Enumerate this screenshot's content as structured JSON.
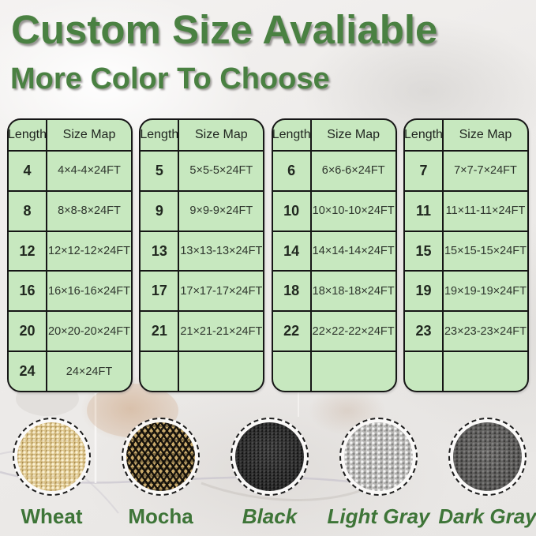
{
  "title": "Custom Size Avaliable",
  "subtitle": "More Color To Choose",
  "table_header": [
    "Length",
    "Size Map"
  ],
  "tables": [
    {
      "rows": [
        [
          "4",
          "4×4-4×24FT"
        ],
        [
          "8",
          "8×8-8×24FT"
        ],
        [
          "12",
          "12×12-12×24FT"
        ],
        [
          "16",
          "16×16-16×24FT"
        ],
        [
          "20",
          "20×20-20×24FT"
        ],
        [
          "24",
          "24×24FT"
        ]
      ]
    },
    {
      "rows": [
        [
          "5",
          "5×5-5×24FT"
        ],
        [
          "9",
          "9×9-9×24FT"
        ],
        [
          "13",
          "13×13-13×24FT"
        ],
        [
          "17",
          "17×17-17×24FT"
        ],
        [
          "21",
          "21×21-21×24FT"
        ],
        [
          "",
          ""
        ]
      ]
    },
    {
      "rows": [
        [
          "6",
          "6×6-6×24FT"
        ],
        [
          "10",
          "10×10-10×24FT"
        ],
        [
          "14",
          "14×14-14×24FT"
        ],
        [
          "18",
          "18×18-18×24FT"
        ],
        [
          "22",
          "22×22-22×24FT"
        ],
        [
          "",
          ""
        ]
      ]
    },
    {
      "rows": [
        [
          "7",
          "7×7-7×24FT"
        ],
        [
          "11",
          "11×11-11×24FT"
        ],
        [
          "15",
          "15×15-15×24FT"
        ],
        [
          "19",
          "19×19-19×24FT"
        ],
        [
          "23",
          "23×23-23×24FT"
        ],
        [
          "",
          ""
        ]
      ]
    }
  ],
  "swatches": [
    {
      "key": "wheat",
      "label": "Wheat",
      "italic": false,
      "base_color": "#d9c186"
    },
    {
      "key": "mocha",
      "label": "Mocha",
      "italic": false,
      "base_color": "#c9aa6b"
    },
    {
      "key": "black",
      "label": "Black",
      "italic": true,
      "base_color": "#2c2c2c"
    },
    {
      "key": "light-gray",
      "label": "Light Gray",
      "italic": true,
      "base_color": "#b7b6b4"
    },
    {
      "key": "dark-gray",
      "label": "Dark Gray",
      "italic": true,
      "base_color": "#646361"
    }
  ],
  "colors": {
    "heading_green": "#4a8142",
    "label_green": "#3e7538",
    "table_bg": "#c7e8bf",
    "table_border": "#161616"
  }
}
